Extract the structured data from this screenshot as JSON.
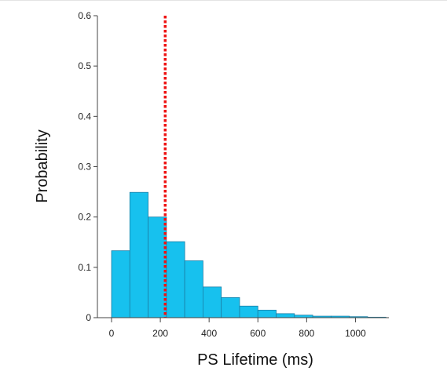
{
  "chart_data": {
    "type": "bar",
    "title": "",
    "xlabel": "PS Lifetime (ms)",
    "ylabel": "Probability",
    "bin_width": 75,
    "bins": [
      {
        "x0": 0,
        "x1": 75,
        "value": 0.133
      },
      {
        "x0": 75,
        "x1": 150,
        "value": 0.249
      },
      {
        "x0": 150,
        "x1": 225,
        "value": 0.2
      },
      {
        "x0": 225,
        "x1": 300,
        "value": 0.151
      },
      {
        "x0": 300,
        "x1": 375,
        "value": 0.113
      },
      {
        "x0": 375,
        "x1": 450,
        "value": 0.061
      },
      {
        "x0": 450,
        "x1": 525,
        "value": 0.04
      },
      {
        "x0": 525,
        "x1": 600,
        "value": 0.023
      },
      {
        "x0": 600,
        "x1": 675,
        "value": 0.015
      },
      {
        "x0": 675,
        "x1": 750,
        "value": 0.008
      },
      {
        "x0": 750,
        "x1": 825,
        "value": 0.005
      },
      {
        "x0": 825,
        "x1": 900,
        "value": 0.003
      },
      {
        "x0": 900,
        "x1": 975,
        "value": 0.003
      },
      {
        "x0": 975,
        "x1": 1050,
        "value": 0.002
      },
      {
        "x0": 1050,
        "x1": 1125,
        "value": 0.001
      }
    ],
    "reference_line": {
      "x": 220
    },
    "xlim": [
      0,
      1150
    ],
    "ylim": [
      0,
      0.6
    ],
    "xticks": [
      0,
      200,
      400,
      600,
      800,
      1000
    ],
    "yticks": [
      0,
      0.1,
      0.2,
      0.3,
      0.4,
      0.5,
      0.6
    ],
    "xtick_labels": [
      "0",
      "200",
      "400",
      "600",
      "800",
      "1000"
    ],
    "ytick_labels": [
      "0",
      "0.1",
      "0.2",
      "0.3",
      "0.4",
      "0.5",
      "0.6"
    ],
    "grid": false,
    "colors": {
      "bar_fill": "#17c1ee",
      "bar_edge": "#1b7fa6",
      "reference_line": "#ee1111",
      "axis": "#444444"
    }
  }
}
